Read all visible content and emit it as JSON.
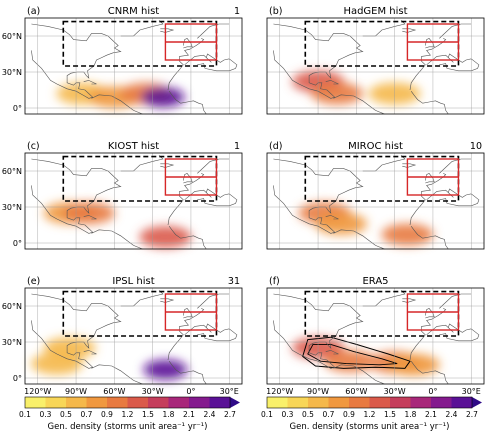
{
  "chart_data": {
    "type": "heatmap",
    "unit_label": "Gen. density (storms unit area⁻¹ yr⁻¹)",
    "colorbar": {
      "ticks": [
        "0.1",
        "0.3",
        "0.5",
        "0.7",
        "0.9",
        "1.2",
        "1.5",
        "1.8",
        "2.1",
        "2.4",
        "2.7"
      ],
      "colors": [
        "#f9f06a",
        "#f8d657",
        "#f5b84a",
        "#f0983f",
        "#e87a40",
        "#da5a4a",
        "#c53e5c",
        "#a8277a",
        "#841a8e",
        "#5a1196",
        "#2f0a87"
      ],
      "extend": "max"
    },
    "x_ticks": [
      "120°W",
      "90°W",
      "60°W",
      "30°W",
      "0°",
      "30°E"
    ],
    "y_ticks": [
      "60°N",
      "30°N",
      "0°"
    ],
    "panels": [
      {
        "tag": "(a)",
        "title": "CNRM hist",
        "count": "1",
        "blobs": [
          {
            "lon": -85,
            "lat": 12,
            "level": 0.5
          },
          {
            "lon": -60,
            "lat": 9,
            "level": 0.7
          },
          {
            "lon": -35,
            "lat": 12,
            "level": 0.9
          },
          {
            "lon": -22,
            "lat": 9,
            "level": 2.4
          }
        ]
      },
      {
        "tag": "(b)",
        "title": "HadGEM hist",
        "count": "",
        "blobs": [
          {
            "lon": -90,
            "lat": 22,
            "level": 1.2
          },
          {
            "lon": -75,
            "lat": 12,
            "level": 0.9
          },
          {
            "lon": -30,
            "lat": 12,
            "level": 0.5
          }
        ]
      },
      {
        "tag": "(c)",
        "title": "KIOST hist",
        "count": "1",
        "blobs": [
          {
            "lon": -95,
            "lat": 25,
            "level": 0.7
          },
          {
            "lon": -80,
            "lat": 25,
            "level": 0.9
          },
          {
            "lon": -20,
            "lat": 5,
            "level": 1.2
          }
        ]
      },
      {
        "tag": "(d)",
        "title": "MIROC hist",
        "count": "10",
        "blobs": [
          {
            "lon": -85,
            "lat": 25,
            "level": 0.9
          },
          {
            "lon": -72,
            "lat": 16,
            "level": 0.7
          },
          {
            "lon": -20,
            "lat": 7,
            "level": 0.9
          }
        ]
      },
      {
        "tag": "(e)",
        "title": "IPSL hist",
        "count": "31",
        "blobs": [
          {
            "lon": -95,
            "lat": 25,
            "level": 0.5
          },
          {
            "lon": -105,
            "lat": 12,
            "level": 0.5
          },
          {
            "lon": -20,
            "lat": 7,
            "level": 2.4
          }
        ]
      },
      {
        "tag": "(f)",
        "title": "ERA5",
        "count": "",
        "blobs": [
          {
            "lon": -90,
            "lat": 25,
            "level": 1.2
          },
          {
            "lon": -65,
            "lat": 14,
            "level": 0.9
          },
          {
            "lon": -30,
            "lat": 13,
            "level": 0.9
          },
          {
            "lon": -15,
            "lat": 11,
            "level": 0.7
          }
        ]
      }
    ]
  }
}
